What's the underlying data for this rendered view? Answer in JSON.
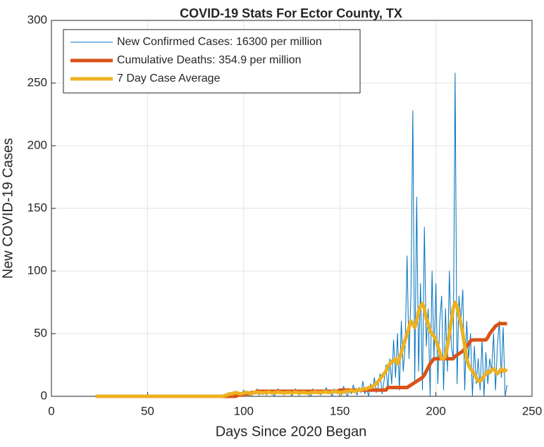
{
  "chart_data": {
    "type": "line",
    "title": "COVID-19 Stats For Ector County, TX",
    "xlabel": "Days Since 2020 Began",
    "ylabel": "New COVID-19 Cases",
    "xlim": [
      0,
      250
    ],
    "xticks": [
      0,
      50,
      100,
      150,
      200,
      250
    ],
    "ylim": [
      0,
      300
    ],
    "yticks": [
      0,
      50,
      100,
      150,
      200,
      250,
      300
    ],
    "grid": true,
    "legend": "upper left",
    "x": [
      23,
      24,
      25,
      26,
      27,
      28,
      29,
      30,
      31,
      32,
      33,
      34,
      35,
      36,
      37,
      38,
      39,
      40,
      41,
      42,
      43,
      44,
      45,
      46,
      47,
      48,
      49,
      50,
      51,
      52,
      53,
      54,
      55,
      56,
      57,
      58,
      59,
      60,
      61,
      62,
      63,
      64,
      65,
      66,
      67,
      68,
      69,
      70,
      71,
      72,
      73,
      74,
      75,
      76,
      77,
      78,
      79,
      80,
      81,
      82,
      83,
      84,
      85,
      86,
      87,
      88,
      89,
      90,
      91,
      92,
      93,
      94,
      95,
      96,
      97,
      98,
      99,
      100,
      101,
      102,
      103,
      104,
      105,
      106,
      107,
      108,
      109,
      110,
      111,
      112,
      113,
      114,
      115,
      116,
      117,
      118,
      119,
      120,
      121,
      122,
      123,
      124,
      125,
      126,
      127,
      128,
      129,
      130,
      131,
      132,
      133,
      134,
      135,
      136,
      137,
      138,
      139,
      140,
      141,
      142,
      143,
      144,
      145,
      146,
      147,
      148,
      149,
      150,
      151,
      152,
      153,
      154,
      155,
      156,
      157,
      158,
      159,
      160,
      161,
      162,
      163,
      164,
      165,
      166,
      167,
      168,
      169,
      170,
      171,
      172,
      173,
      174,
      175,
      176,
      177,
      178,
      179,
      180,
      181,
      182,
      183,
      184,
      185,
      186,
      187,
      188,
      189,
      190,
      191,
      192,
      193,
      194,
      195,
      196,
      197,
      198,
      199,
      200,
      201,
      202,
      203,
      204,
      205,
      206,
      207,
      208,
      209,
      210,
      211,
      212,
      213,
      214,
      215,
      216,
      217,
      218,
      219,
      220,
      221,
      222,
      223,
      224,
      225,
      226,
      227,
      228,
      229,
      230,
      231,
      232,
      233,
      234,
      235,
      236,
      237
    ],
    "series": [
      {
        "name": "New Confirmed Cases: 16300 per million",
        "color": "#0072BD",
        "width": 1,
        "values": [
          0,
          0,
          0,
          0,
          0,
          0,
          0,
          0,
          0,
          0,
          0,
          0,
          0,
          0,
          0,
          0,
          0,
          0,
          0,
          0,
          0,
          0,
          0,
          0,
          0,
          0,
          0,
          0,
          0,
          0,
          0,
          0,
          0,
          0,
          0,
          0,
          0,
          0,
          0,
          0,
          0,
          0,
          0,
          0,
          0,
          0,
          0,
          0,
          0,
          0,
          0,
          0,
          0,
          0,
          0,
          0,
          0,
          0,
          0,
          0,
          0,
          0,
          0,
          0,
          0,
          0,
          0,
          0,
          1,
          3,
          0,
          2,
          4,
          1,
          0,
          3,
          2,
          5,
          2,
          1,
          3,
          0,
          4,
          2,
          6,
          1,
          3,
          2,
          4,
          1,
          5,
          3,
          2,
          0,
          4,
          6,
          2,
          3,
          1,
          5,
          2,
          4,
          0,
          3,
          6,
          2,
          1,
          4,
          2,
          3,
          5,
          1,
          0,
          6,
          3,
          2,
          4,
          1,
          5,
          3,
          7,
          2,
          4,
          0,
          6,
          3,
          2,
          5,
          1,
          8,
          3,
          0,
          6,
          2,
          9,
          4,
          1,
          7,
          3,
          12,
          2,
          6,
          0,
          10,
          4,
          15,
          3,
          8,
          18,
          2,
          12,
          25,
          5,
          30,
          10,
          45,
          15,
          50,
          5,
          60,
          20,
          40,
          112,
          30,
          80,
          228,
          10,
          159,
          20,
          90,
          5,
          135,
          40,
          70,
          0,
          100,
          30,
          90,
          10,
          60,
          80,
          5,
          70,
          20,
          100,
          40,
          30,
          258,
          10,
          80,
          60,
          85,
          5,
          60,
          30,
          50,
          0,
          40,
          10,
          30,
          5,
          45,
          0,
          35,
          10,
          30,
          20,
          50,
          5,
          40,
          60,
          15,
          55,
          0,
          9
        ]
      },
      {
        "name": "Cumulative Deaths: 354.9 per million",
        "color": "#D95319",
        "width": 5,
        "values": [
          0,
          0,
          0,
          0,
          0,
          0,
          0,
          0,
          0,
          0,
          0,
          0,
          0,
          0,
          0,
          0,
          0,
          0,
          0,
          0,
          0,
          0,
          0,
          0,
          0,
          0,
          0,
          0,
          0,
          0,
          0,
          0,
          0,
          0,
          0,
          0,
          0,
          0,
          0,
          0,
          0,
          0,
          0,
          0,
          0,
          0,
          0,
          0,
          0,
          0,
          0,
          0,
          0,
          0,
          0,
          0,
          0,
          0,
          0,
          0,
          0,
          0,
          0,
          0,
          0,
          0,
          0,
          0,
          0,
          0,
          0,
          0,
          0,
          0,
          1,
          1,
          1,
          2,
          2,
          2,
          2,
          3,
          3,
          3,
          4,
          4,
          4,
          4,
          4,
          4,
          4,
          4,
          4,
          4,
          4,
          4,
          4,
          4,
          4,
          4,
          4,
          4,
          4,
          4,
          4,
          4,
          4,
          4,
          4,
          4,
          4,
          4,
          4,
          4,
          4,
          4,
          4,
          4,
          4,
          4,
          4,
          4,
          4,
          4,
          4,
          4,
          4,
          5,
          5,
          5,
          5,
          5,
          5,
          5,
          5,
          5,
          5,
          5,
          5,
          5,
          5,
          5,
          5,
          5,
          5,
          5,
          5,
          5,
          5,
          5,
          5,
          5,
          7,
          7,
          7,
          7,
          7,
          7,
          7,
          7,
          7,
          7,
          7,
          8,
          9,
          10,
          11,
          12,
          13,
          14,
          15,
          17,
          20,
          23,
          26,
          28,
          30,
          30,
          30,
          30,
          30,
          30,
          30,
          30,
          30,
          30,
          30,
          32,
          33,
          34,
          35,
          36,
          38,
          40,
          42,
          44,
          45,
          45,
          45,
          45,
          45,
          45,
          45,
          45,
          47,
          50,
          52,
          54,
          56,
          57,
          58,
          58,
          58,
          58,
          58
        ]
      },
      {
        "name": "7 Day Case Average",
        "color": "#EDB120",
        "width": 5,
        "values": [
          0,
          0,
          0,
          0,
          0,
          0,
          0,
          0,
          0,
          0,
          0,
          0,
          0,
          0,
          0,
          0,
          0,
          0,
          0,
          0,
          0,
          0,
          0,
          0,
          0,
          0,
          0,
          0,
          0,
          0,
          0,
          0,
          0,
          0,
          0,
          0,
          0,
          0,
          0,
          0,
          0,
          0,
          0,
          0,
          0,
          0,
          0,
          0,
          0,
          0,
          0,
          0,
          0,
          0,
          0,
          0,
          0,
          0,
          0,
          0,
          0,
          0,
          0,
          0,
          0,
          0,
          0,
          0.5,
          1,
          1.5,
          2,
          2,
          2.5,
          3,
          2.5,
          2,
          2,
          2.5,
          3,
          3,
          2.5,
          2,
          3,
          3.5,
          3,
          3,
          3,
          2.5,
          3,
          3,
          3.5,
          3,
          2.5,
          3,
          3,
          3.5,
          3,
          3,
          2.5,
          3,
          3,
          3,
          2.5,
          3,
          3.5,
          3,
          2.5,
          3,
          3,
          3,
          2.5,
          2.5,
          3,
          3,
          3.5,
          3,
          3,
          3,
          3,
          3.5,
          3.5,
          3,
          3,
          3.5,
          4,
          3.5,
          3.5,
          3,
          3,
          3.5,
          4,
          4,
          4,
          5,
          4,
          4,
          5,
          5,
          5,
          6,
          6,
          6,
          7,
          7,
          8,
          9,
          10,
          12,
          14,
          16,
          18,
          20,
          24,
          26,
          28,
          28,
          30,
          26,
          30,
          35,
          40,
          45,
          50,
          55,
          60,
          58,
          55,
          60,
          68,
          72,
          74,
          70,
          62,
          58,
          52,
          50,
          48,
          45,
          40,
          35,
          30,
          30,
          32,
          40,
          50,
          60,
          70,
          75,
          72,
          65,
          58,
          50,
          40,
          30,
          25,
          22,
          20,
          18,
          15,
          12,
          12,
          14,
          16,
          18,
          20,
          19,
          21,
          22,
          20,
          18,
          20,
          22,
          20,
          21,
          20
        ]
      }
    ]
  }
}
